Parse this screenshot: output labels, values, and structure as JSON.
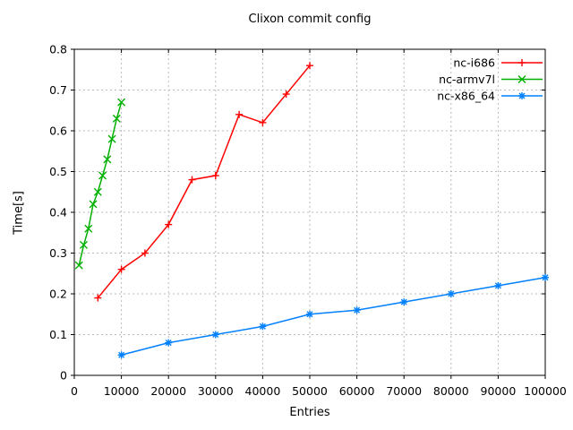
{
  "chart_data": {
    "type": "line",
    "title": "Clixon commit config",
    "xlabel": "Entries",
    "ylabel": "Time[s]",
    "xlim": [
      0,
      100000
    ],
    "ylim": [
      0,
      0.8
    ],
    "grid": true,
    "legend_position": "top-right-inside",
    "background_color": "#ffffff",
    "grid_color": "#b8b8b8",
    "border_color": "#000000",
    "x_ticks": {
      "values": [
        0,
        10000,
        20000,
        30000,
        40000,
        50000,
        60000,
        70000,
        80000,
        90000,
        100000
      ],
      "labels": [
        "0",
        "10000",
        "20000",
        "30000",
        "40000",
        "50000",
        "60000",
        "70000",
        "80000",
        "90000",
        "100000"
      ]
    },
    "y_ticks": {
      "values": [
        0,
        0.1,
        0.2,
        0.3,
        0.4,
        0.5,
        0.6,
        0.7,
        0.8
      ],
      "labels": [
        "0",
        "0.1",
        "0.2",
        "0.3",
        "0.4",
        "0.5",
        "0.6",
        "0.7",
        "0.8"
      ]
    },
    "series": [
      {
        "name": "nc-i686",
        "color": "#ff0000",
        "marker": "plus",
        "x": [
          5000,
          10000,
          15000,
          20000,
          25000,
          30000,
          35000,
          40000,
          45000,
          50000
        ],
        "y": [
          0.19,
          0.26,
          0.3,
          0.37,
          0.48,
          0.49,
          0.64,
          0.62,
          0.69,
          0.76
        ]
      },
      {
        "name": "nc-armv7l",
        "color": "#00b000",
        "marker": "cross",
        "x": [
          1000,
          2000,
          3000,
          4000,
          5000,
          6000,
          7000,
          8000,
          9000,
          10000
        ],
        "y": [
          0.27,
          0.32,
          0.36,
          0.42,
          0.45,
          0.49,
          0.53,
          0.58,
          0.63,
          0.67
        ]
      },
      {
        "name": "nc-x86_64",
        "color": "#0080ff",
        "marker": "star",
        "x": [
          10000,
          20000,
          30000,
          40000,
          50000,
          60000,
          70000,
          80000,
          90000,
          100000
        ],
        "y": [
          0.05,
          0.08,
          0.1,
          0.12,
          0.15,
          0.16,
          0.18,
          0.2,
          0.22,
          0.24
        ]
      }
    ]
  }
}
